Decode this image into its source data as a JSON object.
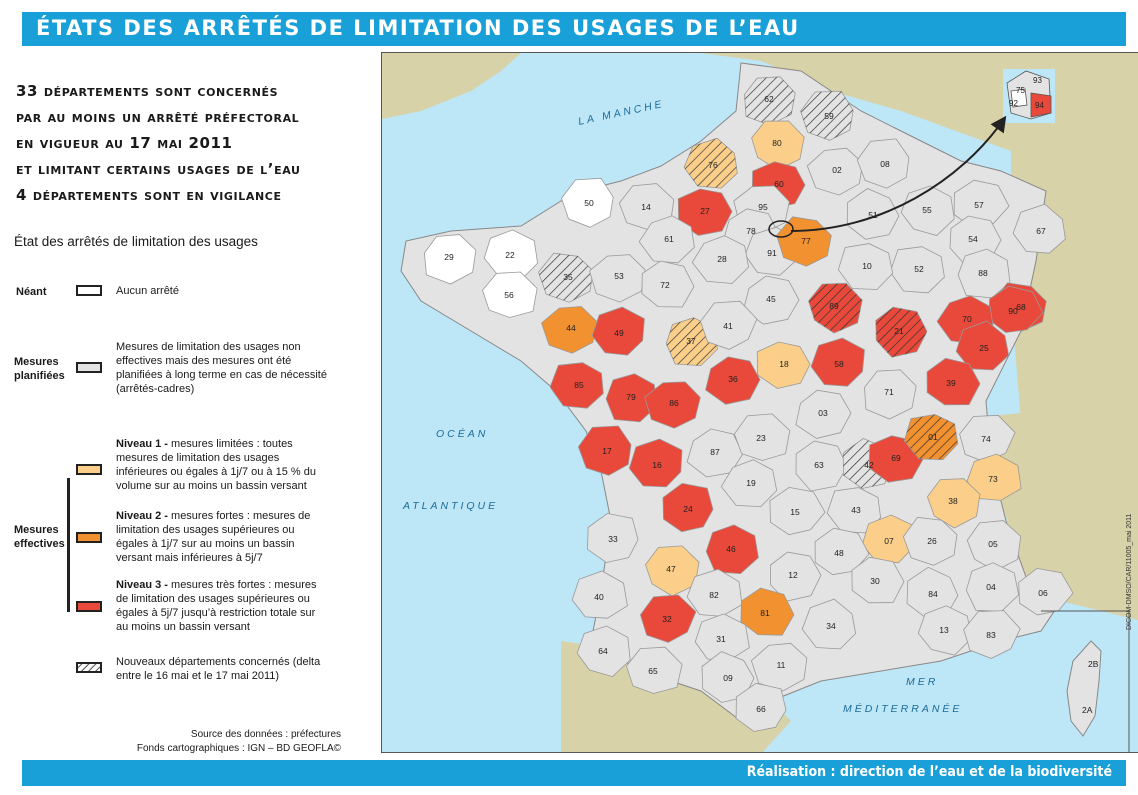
{
  "header": {
    "title": "ÉTATS DES ARRÊTÉS DE LIMITATION DES USAGES DE L’EAU"
  },
  "headline": {
    "lines": [
      "33 départements sont concernés",
      "par au moins un arrêté préfectoral",
      "en vigueur au 17 mai 2011",
      "et limitant certains usages de l’eau",
      "4 départements sont en vigilance"
    ]
  },
  "legend": {
    "title": "État des arrêtés de limitation des usages",
    "neant_label": "Néant",
    "neant_text": "Aucun arrêté",
    "planned_label": "Mesures planifiées",
    "planned_text": "Mesures de limitation des usages non effectives mais des mesures ont été planifiées à long terme en cas de nécessité (arrêtés-cadres)",
    "effective_label": "Mesures effectives",
    "level1_title": "Niveau 1 -",
    "level1_text": " mesures limitées : toutes mesures de limitation des usages inférieures ou égales à 1j/7 ou à 15 % du volume sur au moins un bassin versant",
    "level2_title": "Niveau 2 -",
    "level2_text": " mesures fortes : mesures de limitation des usages supérieures ou égales à 1j/7 sur au moins un bassin versant mais inférieures à 5j/7",
    "level3_title": "Niveau 3 -",
    "level3_text": " mesures très fortes : mesures de limitation des usages supérieures ou égales à 5j/7 jusqu’à restriction totale sur au moins un bassin versant",
    "new_text": "Nouveaux départements concernés (delta entre le 16 mai et le 17 mai 2011)"
  },
  "colors": {
    "banner": "#1aa0d8",
    "sea": "#bde6f7",
    "neant": "#ffffff",
    "planned": "#e3e3e3",
    "level1": "#fbcf8a",
    "level2": "#f29130",
    "level3": "#e8493a",
    "neighbor": "#d8d2a8"
  },
  "source": {
    "line1": "Source des données : préfectures",
    "line2": "Fonds cartographiques : IGN – BD GEOFLA©"
  },
  "map": {
    "sea_labels": [
      "LA MANCHE",
      "OCÉAN",
      "ATLANTIQUE",
      "MER",
      "MÉDITERRANÉE"
    ],
    "inset_idf": [
      "75",
      "92",
      "93",
      "94"
    ],
    "inset_corse": [
      "2B",
      "2A"
    ],
    "departments": [
      {
        "code": "62",
        "s": "hatch"
      },
      {
        "code": "59",
        "s": "hatch"
      },
      {
        "code": "80",
        "s": "l1"
      },
      {
        "code": "76",
        "s": "l1h"
      },
      {
        "code": "60",
        "s": "l3"
      },
      {
        "code": "02",
        "s": "g"
      },
      {
        "code": "08",
        "s": "g"
      },
      {
        "code": "27",
        "s": "l3"
      },
      {
        "code": "14",
        "s": "g"
      },
      {
        "code": "50",
        "s": "w"
      },
      {
        "code": "95",
        "s": "g"
      },
      {
        "code": "78",
        "s": "g"
      },
      {
        "code": "91",
        "s": "g"
      },
      {
        "code": "77",
        "s": "l2"
      },
      {
        "code": "51",
        "s": "g"
      },
      {
        "code": "55",
        "s": "g"
      },
      {
        "code": "57",
        "s": "g"
      },
      {
        "code": "67",
        "s": "g"
      },
      {
        "code": "54",
        "s": "g"
      },
      {
        "code": "88",
        "s": "g"
      },
      {
        "code": "68",
        "s": "l3"
      },
      {
        "code": "90",
        "s": "l3"
      },
      {
        "code": "70",
        "s": "l3"
      },
      {
        "code": "25",
        "s": "l3"
      },
      {
        "code": "39",
        "s": "l3"
      },
      {
        "code": "21",
        "s": "l3h"
      },
      {
        "code": "52",
        "s": "g"
      },
      {
        "code": "10",
        "s": "g"
      },
      {
        "code": "89",
        "s": "l3h"
      },
      {
        "code": "29",
        "s": "w"
      },
      {
        "code": "22",
        "s": "w"
      },
      {
        "code": "56",
        "s": "w"
      },
      {
        "code": "35",
        "s": "hatch"
      },
      {
        "code": "53",
        "s": "g"
      },
      {
        "code": "61",
        "s": "g"
      },
      {
        "code": "28",
        "s": "g"
      },
      {
        "code": "72",
        "s": "g"
      },
      {
        "code": "45",
        "s": "g"
      },
      {
        "code": "44",
        "s": "l2"
      },
      {
        "code": "49",
        "s": "l3"
      },
      {
        "code": "37",
        "s": "l1h"
      },
      {
        "code": "41",
        "s": "g"
      },
      {
        "code": "18",
        "s": "l1"
      },
      {
        "code": "58",
        "s": "l3"
      },
      {
        "code": "71",
        "s": "g"
      },
      {
        "code": "85",
        "s": "l3"
      },
      {
        "code": "79",
        "s": "l3"
      },
      {
        "code": "86",
        "s": "l3"
      },
      {
        "code": "36",
        "s": "l3"
      },
      {
        "code": "03",
        "s": "g"
      },
      {
        "code": "17",
        "s": "l3"
      },
      {
        "code": "16",
        "s": "l3"
      },
      {
        "code": "87",
        "s": "g"
      },
      {
        "code": "23",
        "s": "g"
      },
      {
        "code": "63",
        "s": "g"
      },
      {
        "code": "42",
        "s": "hatch"
      },
      {
        "code": "69",
        "s": "l3"
      },
      {
        "code": "01",
        "s": "l2h"
      },
      {
        "code": "74",
        "s": "g"
      },
      {
        "code": "73",
        "s": "l1"
      },
      {
        "code": "38",
        "s": "l1"
      },
      {
        "code": "24",
        "s": "l3"
      },
      {
        "code": "19",
        "s": "g"
      },
      {
        "code": "15",
        "s": "g"
      },
      {
        "code": "43",
        "s": "g"
      },
      {
        "code": "07",
        "s": "l1"
      },
      {
        "code": "26",
        "s": "g"
      },
      {
        "code": "05",
        "s": "g"
      },
      {
        "code": "33",
        "s": "g"
      },
      {
        "code": "46",
        "s": "l3"
      },
      {
        "code": "12",
        "s": "g"
      },
      {
        "code": "48",
        "s": "g"
      },
      {
        "code": "47",
        "s": "l1"
      },
      {
        "code": "82",
        "s": "g"
      },
      {
        "code": "81",
        "s": "l2"
      },
      {
        "code": "30",
        "s": "g"
      },
      {
        "code": "84",
        "s": "g"
      },
      {
        "code": "04",
        "s": "g"
      },
      {
        "code": "06",
        "s": "g"
      },
      {
        "code": "40",
        "s": "g"
      },
      {
        "code": "32",
        "s": "l3"
      },
      {
        "code": "31",
        "s": "g"
      },
      {
        "code": "34",
        "s": "g"
      },
      {
        "code": "13",
        "s": "g"
      },
      {
        "code": "83",
        "s": "g"
      },
      {
        "code": "64",
        "s": "g"
      },
      {
        "code": "65",
        "s": "g"
      },
      {
        "code": "09",
        "s": "g"
      },
      {
        "code": "11",
        "s": "g"
      },
      {
        "code": "66",
        "s": "g"
      }
    ]
  },
  "side_code": "DICOM-DMSO/CAR/11005_mai 2011",
  "footer": {
    "credit": "Réalisation : direction de l’eau et de la biodiversité"
  }
}
